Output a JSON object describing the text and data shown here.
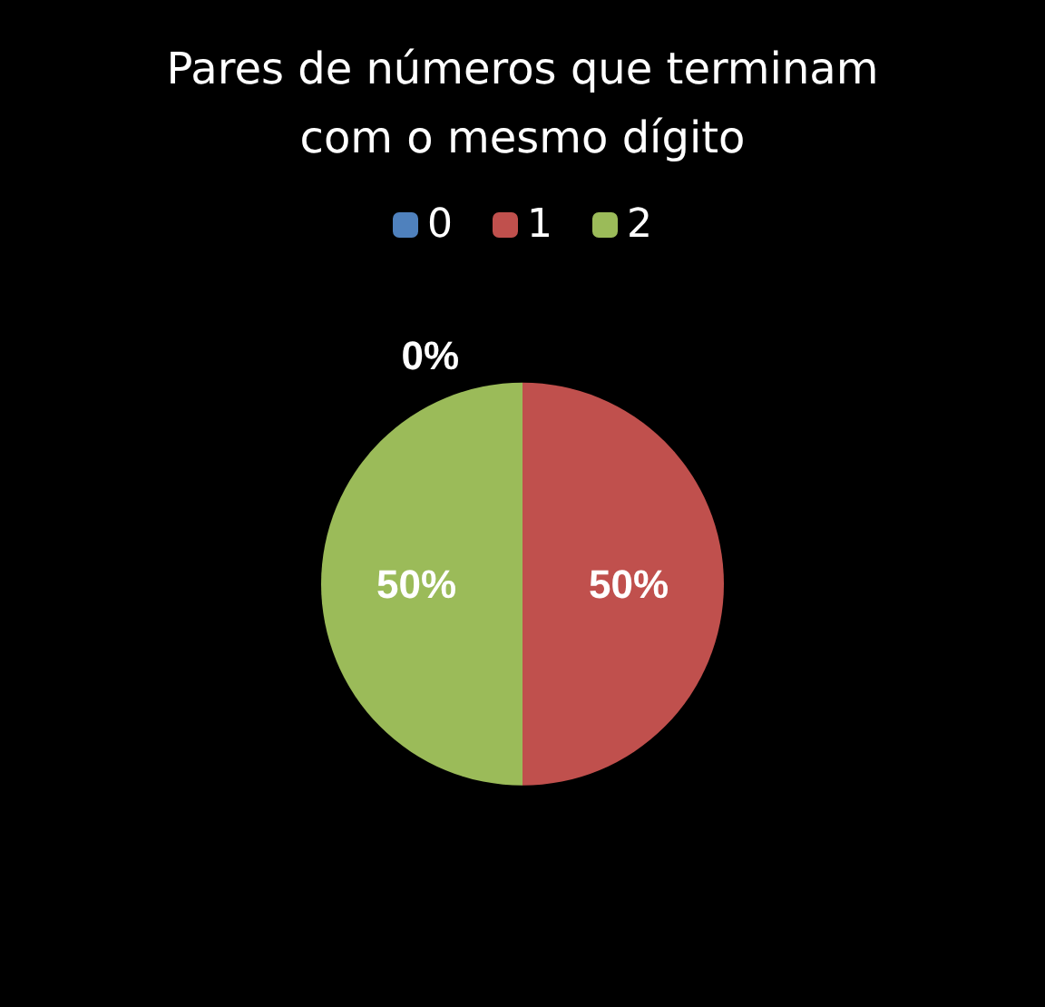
{
  "chart_data": {
    "type": "pie",
    "title": "Pares de números que terminam\ncom o mesmo dígito",
    "categories": [
      "0",
      "1",
      "2"
    ],
    "values": [
      0,
      50,
      50
    ],
    "colors": [
      "#4f81bd",
      "#c0504d",
      "#9bbb59"
    ],
    "value_labels": [
      "0%",
      "50%",
      "50%"
    ],
    "legend": "top"
  }
}
